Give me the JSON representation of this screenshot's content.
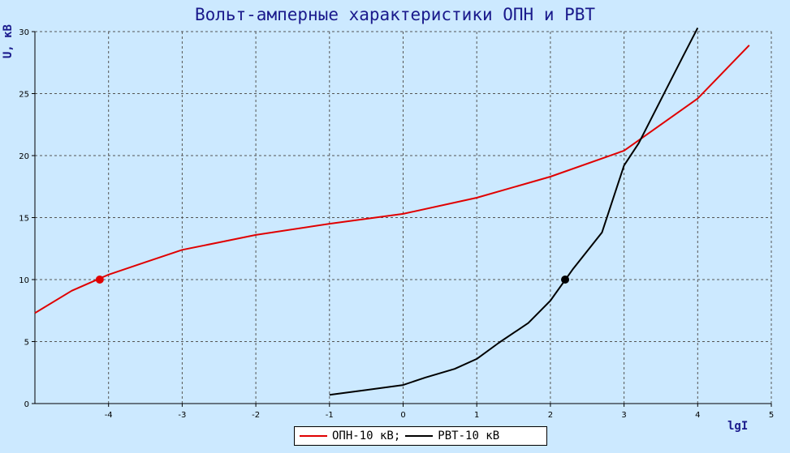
{
  "chart_data": {
    "type": "line",
    "title": "Вольт-амперные характеристики ОПН и РВТ",
    "xlabel": "lgI",
    "ylabel": "U, кВ",
    "xlim": [
      -5,
      5
    ],
    "ylim": [
      0,
      30
    ],
    "x_ticks": [
      "-4",
      "-3",
      "-2",
      "-1",
      "0",
      "1",
      "2",
      "3",
      "4",
      "5"
    ],
    "y_ticks": [
      "0",
      "5",
      "10",
      "15",
      "20",
      "25",
      "30"
    ],
    "grid": true,
    "legend_position": "bottom-center",
    "series": [
      {
        "name": "ОПН-10 кВ;",
        "color": "#e00000",
        "x": [
          -5.0,
          -4.5,
          -4.0,
          -3.5,
          -3.0,
          -2.5,
          -2.0,
          -1.0,
          0.0,
          1.0,
          2.0,
          3.0,
          4.0,
          4.7
        ],
        "y": [
          7.3,
          9.1,
          10.4,
          11.4,
          12.4,
          13.0,
          13.6,
          14.5,
          15.3,
          16.6,
          18.3,
          20.4,
          24.6,
          28.9
        ],
        "marker": {
          "x": -4.12,
          "y": 10.0
        }
      },
      {
        "name": "РВТ-10 кВ",
        "color": "#000000",
        "x": [
          -1.0,
          -0.5,
          0.0,
          0.3,
          0.7,
          1.0,
          1.3,
          1.7,
          2.0,
          2.3,
          2.7,
          3.0,
          3.2,
          3.5,
          3.8,
          4.0
        ],
        "y": [
          0.7,
          1.1,
          1.5,
          2.1,
          2.8,
          3.6,
          4.9,
          6.5,
          8.3,
          10.8,
          13.8,
          19.2,
          21.0,
          24.5,
          28.0,
          30.3
        ],
        "marker": {
          "x": 2.2,
          "y": 10.0
        }
      }
    ]
  }
}
